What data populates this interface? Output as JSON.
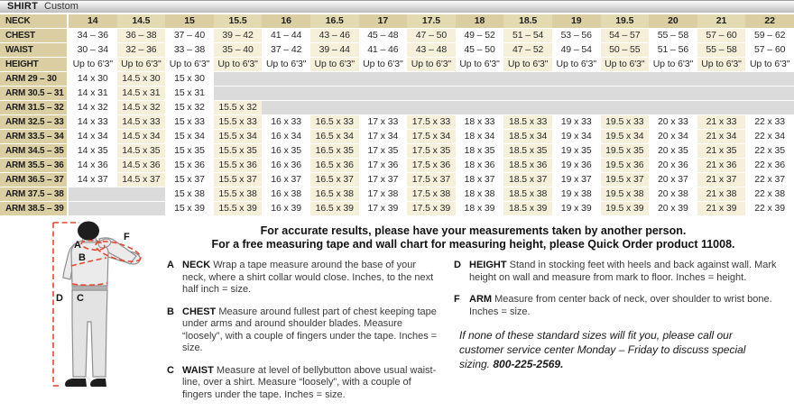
{
  "header": {
    "title": "SHIRT",
    "subtitle": "Custom"
  },
  "table": {
    "neck_label": "NECK",
    "neck_sizes": [
      "14",
      "14.5",
      "15",
      "15.5",
      "16",
      "16.5",
      "17",
      "17.5",
      "18",
      "18.5",
      "19",
      "19.5",
      "20",
      "21",
      "22"
    ],
    "rows": [
      {
        "label": "CHEST",
        "values": [
          "34 – 36",
          "36 – 38",
          "37 – 40",
          "39 – 42",
          "41 – 44",
          "43 – 46",
          "45 – 48",
          "47 – 50",
          "49 – 52",
          "51 – 54",
          "53 – 56",
          "54 – 57",
          "55 – 58",
          "57 – 60",
          "59 – 62"
        ]
      },
      {
        "label": "WAIST",
        "values": [
          "30 – 34",
          "32 – 36",
          "33 – 38",
          "35 – 40",
          "37 – 42",
          "39 – 44",
          "41 – 46",
          "43 – 48",
          "45 – 50",
          "47 – 52",
          "49 – 54",
          "50 – 55",
          "51 – 56",
          "55 – 58",
          "57 – 60"
        ]
      },
      {
        "label": "HEIGHT",
        "values": [
          "Up to 6'3\"",
          "Up to 6'3\"",
          "Up to 6'3\"",
          "Up to 6'3\"",
          "Up to 6'3\"",
          "Up to 6'3\"",
          "Up to 6'3\"",
          "Up to 6'3\"",
          "Up to 6'3\"",
          "Up to 6'3\"",
          "Up to 6'3\"",
          "Up to 6'3\"",
          "Up to 6'3\"",
          "Up to 6'3\"",
          "Up to 6'3\""
        ]
      },
      {
        "label": "ARM 29 – 30",
        "values": [
          "14 x 30",
          "14.5 x 30",
          "15 x 30",
          "",
          "",
          "",
          "",
          "",
          "",
          "",
          "",
          "",
          "",
          "",
          ""
        ]
      },
      {
        "label": "ARM 30.5 – 31",
        "values": [
          "14 x 31",
          "14.5 x 31",
          "15 x 31",
          "",
          "",
          "",
          "",
          "",
          "",
          "",
          "",
          "",
          "",
          "",
          ""
        ]
      },
      {
        "label": "ARM 31.5 – 32",
        "values": [
          "14 x 32",
          "14.5 x 32",
          "15 x 32",
          "15.5 x 32",
          "",
          "",
          "",
          "",
          "",
          "",
          "",
          "",
          "",
          "",
          ""
        ]
      },
      {
        "label": "ARM 32.5 – 33",
        "values": [
          "14 x 33",
          "14.5 x 33",
          "15 x 33",
          "15.5 x 33",
          "16 x 33",
          "16.5 x 33",
          "17 x 33",
          "17.5 x 33",
          "18 x 33",
          "18.5 x 33",
          "19 x 33",
          "19.5 x 33",
          "20 x 33",
          "21 x 33",
          "22 x 33"
        ]
      },
      {
        "label": "ARM 33.5 – 34",
        "values": [
          "14 x 34",
          "14.5 x 34",
          "15 x 34",
          "15.5 x 34",
          "16 x 34",
          "16.5 x 34",
          "17 x 34",
          "17.5 x 34",
          "18 x 34",
          "18.5 x 34",
          "19 x 34",
          "19.5 x 34",
          "20 x 34",
          "21 x 34",
          "22 x 34"
        ]
      },
      {
        "label": "ARM 34.5 – 35",
        "values": [
          "14 x 35",
          "14.5 x 35",
          "15 x 35",
          "15.5 x 35",
          "16 x 35",
          "16.5 x 35",
          "17 x 35",
          "17.5 x 35",
          "18 x 35",
          "18.5 x 35",
          "19 x 35",
          "19.5 x 35",
          "20 x 35",
          "21 x 35",
          "22 x 35"
        ]
      },
      {
        "label": "ARM 35.5 – 36",
        "values": [
          "14 x 36",
          "14.5 x 36",
          "15 x 36",
          "15.5 x 36",
          "16 x 36",
          "16.5 x 36",
          "17 x 36",
          "17.5 x 36",
          "18 x 36",
          "18.5 x 36",
          "19 x 36",
          "19.5 x 36",
          "20 x 36",
          "21 x 36",
          "22 x 36"
        ]
      },
      {
        "label": "ARM 36.5 – 37",
        "values": [
          "14 x 37",
          "14.5 x 37",
          "15 x 37",
          "15.5 x 37",
          "16 x 37",
          "16.5 x 37",
          "17 x 37",
          "17.5 x 37",
          "18 x 37",
          "18.5 x 37",
          "19 x 37",
          "19.5 x 37",
          "20 x 37",
          "21 x 37",
          "22 x 37"
        ]
      },
      {
        "label": "ARM 37.5 – 38",
        "values": [
          "",
          "",
          "15 x 38",
          "15.5 x 38",
          "16 x 38",
          "16.5 x 38",
          "17 x 38",
          "17.5 x 38",
          "18 x 38",
          "18.5 x 38",
          "19 x 38",
          "19.5 x 38",
          "20 x 38",
          "21 x 38",
          "22 x 38"
        ]
      },
      {
        "label": "ARM 38.5 – 39",
        "values": [
          "",
          "",
          "15 x 39",
          "15.5 x 39",
          "16 x 39",
          "16.5 x 39",
          "17 x 39",
          "17.5 x 39",
          "18 x 39",
          "18.5 x 39",
          "19 x 39",
          "19.5 x 39",
          "20 x 39",
          "21 x 39",
          "22 x 39"
        ]
      }
    ]
  },
  "intro": {
    "line1": "For accurate results, please have your measurements taken by another person.",
    "line2": "For a free measuring tape and wall chart for measuring height, please Quick Order product 11008."
  },
  "instructions": [
    {
      "letter": "A",
      "term": "NECK",
      "text": "Wrap a tape measure around the base of your neck, where a shirt collar would close. Inches, to the next half inch = size."
    },
    {
      "letter": "B",
      "term": "CHEST",
      "text": "Measure around fullest part of chest keeping tape under arms and around shoulder blades. Measure “loosely”, with a couple of fingers under the tape. Inches = size."
    },
    {
      "letter": "C",
      "term": "WAIST",
      "text": "Measure at level of bellybutton above usual waist-line, over a shirt. Measure “loosely”, with a couple of fingers under the tape. Inches = size."
    },
    {
      "letter": "D",
      "term": "HEIGHT",
      "text": "Stand in stocking feet with heels and back against wall. Mark height on wall and measure from mark to floor. Inches = height."
    },
    {
      "letter": "F",
      "term": "ARM",
      "text": "Measure from center back of neck, over shoulder to wrist bone. Inches = size."
    }
  ],
  "note": {
    "text": "If none of these standard sizes will fit you, please call our customer service center Monday – Friday to discuss special sizing. ",
    "phone": "800-225-2569."
  },
  "figure": {
    "labels": [
      "A",
      "B",
      "C",
      "D",
      "F"
    ]
  },
  "colors": {
    "tan": "#dacea2",
    "tan_light": "#e4dab2",
    "cream_stripe": "#f6efda",
    "empty_gray": "#dbdbdb",
    "measure_red": "#e8452c"
  }
}
